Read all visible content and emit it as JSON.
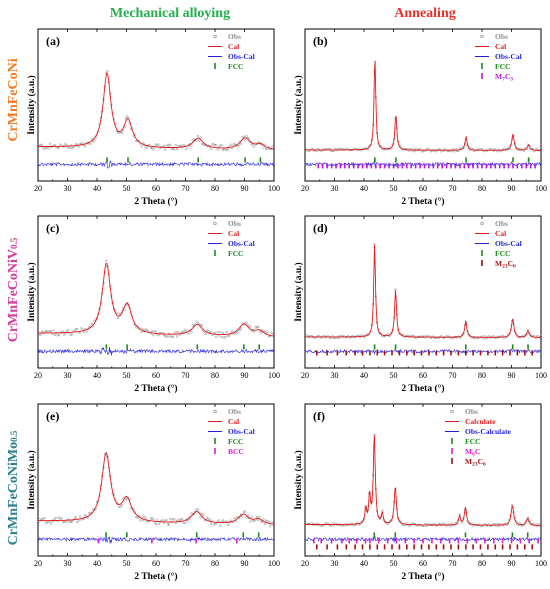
{
  "columns": [
    {
      "title": "Mechanical alloying",
      "color": "#22b04b"
    },
    {
      "title": "Annealing",
      "color": "#e8312a"
    }
  ],
  "rows": [
    {
      "label": "CrMnFeCoNi",
      "sub": "",
      "color": "#f07a22"
    },
    {
      "label": "CrMnFeCoNiV",
      "sub": "0.5",
      "color": "#d63b9c"
    },
    {
      "label": "CrMnFeCoNiMo",
      "sub": "0.5",
      "color": "#2b7f8f"
    }
  ],
  "colors": {
    "obs": "#8c8c8c",
    "cal": "#e41a1c",
    "diff": "#1f1fe0",
    "fcc": "#1a8a1a",
    "m7c3": "#b21ae0",
    "m23c6": "#a01010",
    "bcc": "#e01ad6",
    "m6c": "#e01ad6"
  },
  "chart_data": [
    {
      "type": "line",
      "panel": "(a)",
      "xlabel": "2 Theta (°)",
      "ylabel": "Intensity (a.u.)",
      "xlim": [
        20,
        100
      ],
      "xticks": [
        20,
        30,
        40,
        50,
        60,
        70,
        80,
        90,
        100
      ],
      "legend": [
        {
          "text": "Obs",
          "kind": "dot",
          "color": "#8c8c8c"
        },
        {
          "text": "Cal",
          "kind": "line",
          "color": "#e41a1c"
        },
        {
          "text": "Obs-Cal",
          "kind": "line",
          "color": "#1f1fe0"
        },
        {
          "text": "FCC",
          "kind": "bar",
          "color": "#1a8a1a"
        }
      ],
      "background": 0.3,
      "peaks": [
        {
          "x": 43.4,
          "h": 0.9,
          "w": 1.6
        },
        {
          "x": 50.5,
          "h": 0.32,
          "w": 1.8
        },
        {
          "x": 74.3,
          "h": 0.13,
          "w": 2.2
        },
        {
          "x": 90.2,
          "h": 0.14,
          "w": 2.2
        },
        {
          "x": 95.4,
          "h": 0.06,
          "w": 2
        }
      ],
      "reflections": [
        {
          "phase": "FCC",
          "color": "#1a8a1a",
          "positions": [
            43.4,
            50.5,
            74.3,
            90.2,
            95.4
          ]
        }
      ]
    },
    {
      "type": "line",
      "panel": "(b)",
      "xlabel": "2 Theta (°)",
      "ylabel": "Intensity (a.u.)",
      "xlim": [
        20,
        100
      ],
      "xticks": [
        20,
        30,
        40,
        50,
        60,
        70,
        80,
        90,
        100
      ],
      "legend": [
        {
          "text": "Obs",
          "kind": "dot",
          "color": "#8c8c8c"
        },
        {
          "text": "Cal",
          "kind": "line",
          "color": "#e41a1c"
        },
        {
          "text": "Obs-Cal",
          "kind": "line",
          "color": "#1f1fe0"
        },
        {
          "text": "FCC",
          "kind": "bar",
          "color": "#1a8a1a"
        },
        {
          "text": "M",
          "sub": "7",
          "text2": "C",
          "sub2": "3",
          "kind": "bar",
          "color": "#b21ae0"
        }
      ],
      "background": 0.05,
      "peaks": [
        {
          "x": 43.7,
          "h": 1.0,
          "w": 0.35
        },
        {
          "x": 50.8,
          "h": 0.38,
          "w": 0.4
        },
        {
          "x": 74.6,
          "h": 0.14,
          "w": 0.45
        },
        {
          "x": 90.5,
          "h": 0.17,
          "w": 0.5
        },
        {
          "x": 95.8,
          "h": 0.06,
          "w": 0.5
        }
      ],
      "reflections": [
        {
          "phase": "FCC",
          "color": "#1a8a1a",
          "positions": [
            43.7,
            50.8,
            74.6,
            90.5,
            95.8
          ]
        },
        {
          "phase": "M7C3",
          "color": "#b21ae0",
          "positions": [
            24.5,
            26,
            27.5,
            29,
            30.5,
            32,
            33.5,
            35,
            36.5,
            38,
            39.5,
            41,
            42.5,
            44,
            45.5,
            47,
            48.5,
            50,
            51.5,
            53,
            54.5,
            56,
            57.5,
            59,
            60.5,
            62,
            63.5,
            65,
            66.5,
            68,
            69.5,
            71,
            72.5,
            74,
            75.5,
            77,
            78.5,
            80,
            81.5,
            83,
            84.5,
            86,
            87.5,
            89,
            90.5,
            92,
            93.5,
            95,
            96.5,
            98
          ]
        }
      ]
    },
    {
      "type": "line",
      "panel": "(c)",
      "xlabel": "2 Theta (°)",
      "ylabel": "Intensity (a.u.)",
      "xlim": [
        20,
        100
      ],
      "xticks": [
        20,
        30,
        40,
        50,
        60,
        70,
        80,
        90,
        100
      ],
      "legend": [
        {
          "text": "Obs",
          "kind": "dot",
          "color": "#8c8c8c"
        },
        {
          "text": "Cal",
          "kind": "line",
          "color": "#e41a1c"
        },
        {
          "text": "Obs-Cal",
          "kind": "line",
          "color": "#1f1fe0"
        },
        {
          "text": "FCC",
          "kind": "bar",
          "color": "#1a8a1a"
        }
      ],
      "background": 0.3,
      "peaks": [
        {
          "x": 43.2,
          "h": 0.75,
          "w": 1.7
        },
        {
          "x": 50.2,
          "h": 0.3,
          "w": 1.9
        },
        {
          "x": 74,
          "h": 0.12,
          "w": 2.2
        },
        {
          "x": 89.8,
          "h": 0.13,
          "w": 2.2
        },
        {
          "x": 95,
          "h": 0.06,
          "w": 2
        }
      ],
      "reflections": [
        {
          "phase": "FCC",
          "color": "#1a8a1a",
          "positions": [
            43.2,
            50.2,
            74,
            89.8,
            95
          ]
        }
      ]
    },
    {
      "type": "line",
      "panel": "(d)",
      "xlabel": "2 Theta (°)",
      "ylabel": "Intensity (a.u.)",
      "xlim": [
        20,
        100
      ],
      "xticks": [
        20,
        30,
        40,
        50,
        60,
        70,
        80,
        90,
        100
      ],
      "legend": [
        {
          "text": "Obs",
          "kind": "dot",
          "color": "#8c8c8c"
        },
        {
          "text": "Cal",
          "kind": "line",
          "color": "#e41a1c"
        },
        {
          "text": "Obs-Cal",
          "kind": "line",
          "color": "#1f1fe0"
        },
        {
          "text": "FCC",
          "kind": "bar",
          "color": "#1a8a1a"
        },
        {
          "text": "M",
          "sub": "23",
          "text2": "C",
          "sub2": "6",
          "kind": "bar",
          "color": "#a01010"
        }
      ],
      "background": 0.05,
      "peaks": [
        {
          "x": 43.6,
          "h": 1.0,
          "w": 0.35
        },
        {
          "x": 50.7,
          "h": 0.5,
          "w": 0.4
        },
        {
          "x": 74.5,
          "h": 0.17,
          "w": 0.45
        },
        {
          "x": 90.4,
          "h": 0.2,
          "w": 0.5
        },
        {
          "x": 95.6,
          "h": 0.07,
          "w": 0.5
        }
      ],
      "reflections": [
        {
          "phase": "FCC",
          "color": "#1a8a1a",
          "positions": [
            43.6,
            50.7,
            74.5,
            90.4,
            95.6
          ]
        },
        {
          "phase": "M23C6",
          "color": "#a01010",
          "positions": [
            24,
            27.5,
            31,
            34,
            37,
            39.5,
            42,
            44.5,
            47,
            49.5,
            52,
            54.5,
            57,
            59.5,
            62,
            64.5,
            67,
            69.5,
            72,
            74.5,
            77,
            79.5,
            82,
            84.5,
            87,
            89.5,
            92,
            94.5,
            97
          ]
        }
      ]
    },
    {
      "type": "line",
      "panel": "(e)",
      "xlabel": "2 Theta (°)",
      "ylabel": "Intensity (a.u.)",
      "xlim": [
        20,
        100
      ],
      "xticks": [
        20,
        30,
        40,
        50,
        60,
        70,
        80,
        90,
        100
      ],
      "legend": [
        {
          "text": "Obs",
          "kind": "dot",
          "color": "#8c8c8c"
        },
        {
          "text": "Cal",
          "kind": "line",
          "color": "#e41a1c"
        },
        {
          "text": "Obs-Cal",
          "kind": "line",
          "color": "#1f1fe0"
        },
        {
          "text": "FCC",
          "kind": "bar",
          "color": "#1a8a1a"
        },
        {
          "text": "BCC",
          "kind": "bar",
          "color": "#e01ad6"
        }
      ],
      "background": 0.3,
      "peaks": [
        {
          "x": 43.1,
          "h": 0.68,
          "w": 1.8
        },
        {
          "x": 50.1,
          "h": 0.22,
          "w": 2
        },
        {
          "x": 73.8,
          "h": 0.12,
          "w": 2.2
        },
        {
          "x": 89.6,
          "h": 0.1,
          "w": 2.2
        },
        {
          "x": 94.8,
          "h": 0.05,
          "w": 2
        }
      ],
      "reflections": [
        {
          "phase": "FCC",
          "color": "#1a8a1a",
          "positions": [
            43.1,
            50.1,
            73.8,
            89.6,
            94.8
          ]
        },
        {
          "phase": "BCC",
          "color": "#e01ad6",
          "positions": [
            40.5,
            58.6,
            73.6,
            87.4
          ]
        }
      ]
    },
    {
      "type": "line",
      "panel": "(f)",
      "xlabel": "2 Theta (°)",
      "ylabel": "Intensity (a.u.)",
      "xlim": [
        20,
        100
      ],
      "xticks": [
        20,
        30,
        40,
        50,
        60,
        70,
        80,
        90,
        100
      ],
      "legend": [
        {
          "text": "Obs",
          "kind": "dot",
          "color": "#8c8c8c"
        },
        {
          "text": "Calculate",
          "kind": "line",
          "color": "#e41a1c"
        },
        {
          "text": "Obs-Calculate",
          "kind": "line",
          "color": "#1f1fe0"
        },
        {
          "text": "FCC",
          "kind": "bar",
          "color": "#1a8a1a"
        },
        {
          "text": "M",
          "sub": "6",
          "text2": "C",
          "sub2": "",
          "kind": "bar",
          "color": "#e01ad6"
        },
        {
          "text": "M",
          "sub": "23",
          "text2": "C",
          "sub2": "6",
          "kind": "bar",
          "color": "#a01010"
        }
      ],
      "background": 0.08,
      "peaks": [
        {
          "x": 40.6,
          "h": 0.18,
          "w": 0.35
        },
        {
          "x": 41.9,
          "h": 0.32,
          "w": 0.35
        },
        {
          "x": 43.5,
          "h": 1.0,
          "w": 0.4
        },
        {
          "x": 46.2,
          "h": 0.12,
          "w": 0.35
        },
        {
          "x": 50.6,
          "h": 0.42,
          "w": 0.45
        },
        {
          "x": 72.4,
          "h": 0.1,
          "w": 0.4
        },
        {
          "x": 74.4,
          "h": 0.2,
          "w": 0.45
        },
        {
          "x": 90.3,
          "h": 0.22,
          "w": 0.55
        },
        {
          "x": 95.5,
          "h": 0.08,
          "w": 0.5
        }
      ],
      "reflections": [
        {
          "phase": "FCC",
          "color": "#1a8a1a",
          "positions": [
            43.5,
            50.6,
            74.4,
            90.3,
            95.5
          ]
        },
        {
          "phase": "M6C",
          "color": "#e01ad6",
          "positions": [
            23,
            25.5,
            29,
            32.5,
            35,
            37.5,
            40.5,
            42,
            45,
            48,
            51,
            54,
            57,
            60,
            63,
            66,
            69,
            72,
            75,
            78,
            81,
            84,
            87,
            90,
            93,
            96,
            99
          ]
        },
        {
          "phase": "M23C6",
          "color": "#a01010",
          "positions": [
            24,
            27.5,
            31,
            34,
            37,
            39.5,
            42,
            44.5,
            47,
            49.5,
            52,
            54.5,
            57,
            59.5,
            62,
            64.5,
            67,
            69.5,
            72,
            74.5,
            77,
            79.5,
            82,
            84.5,
            87,
            89.5,
            92,
            94.5,
            97
          ]
        }
      ]
    }
  ]
}
